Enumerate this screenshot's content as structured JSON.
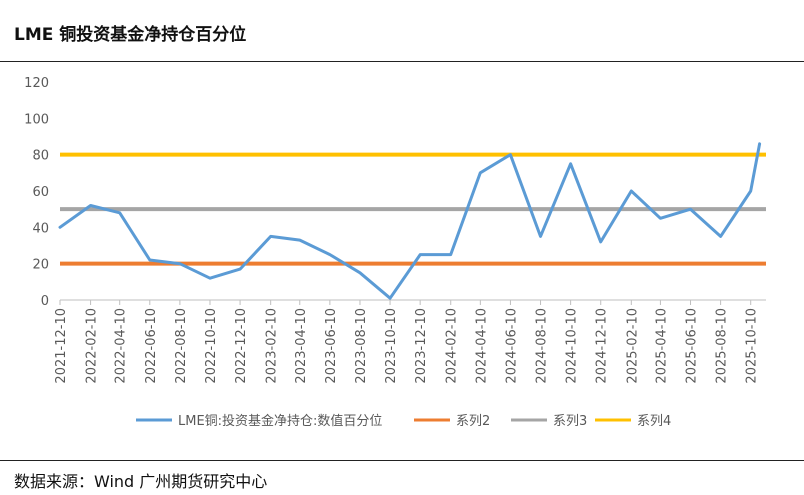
{
  "header": {
    "title": "LME 铜投资基金净持仓百分位"
  },
  "footer": {
    "source": "数据来源：Wind  广州期货研究中心"
  },
  "chart_data": {
    "type": "line",
    "title": "LME 铜投资基金净持仓百分位",
    "xlabel": "",
    "ylabel": "",
    "ylim": [
      0,
      120
    ],
    "yticks": [
      0,
      20,
      40,
      60,
      80,
      100,
      120
    ],
    "grid": false,
    "legend": "bottom",
    "x_ticks": [
      "2021-12-10",
      "2022-02-10",
      "2022-04-10",
      "2022-06-10",
      "2022-08-10",
      "2022-10-10",
      "2022-12-10",
      "2023-02-10",
      "2023-04-10",
      "2023-06-10",
      "2023-08-10",
      "2023-10-10",
      "2023-12-10",
      "2024-02-10",
      "2024-04-10",
      "2024-06-10",
      "2024-08-10",
      "2024-10-10",
      "2024-12-10",
      "2025-02-10",
      "2025-04-10",
      "2025-06-10",
      "2025-08-10",
      "2025-10-10"
    ],
    "series": [
      {
        "name": "LME铜:投资基金净持仓:数值百分位",
        "color": "#5B9BD5",
        "x": [
          "2021-12-10",
          "2022-02-10",
          "2022-04-10",
          "2022-06-10",
          "2022-08-10",
          "2022-10-10",
          "2022-12-10",
          "2023-02-10",
          "2023-04-10",
          "2023-06-10",
          "2023-08-10",
          "2023-10-10",
          "2023-12-10",
          "2024-02-10",
          "2024-04-10",
          "2024-06-10",
          "2024-08-10",
          "2024-10-10",
          "2024-12-10",
          "2025-02-10",
          "2025-04-10",
          "2025-06-10",
          "2025-08-10",
          "2025-10-10",
          "2025-10-28"
        ],
        "values": [
          40,
          52,
          48,
          22,
          20,
          12,
          17,
          35,
          33,
          25,
          15,
          1,
          25,
          25,
          70,
          80,
          35,
          75,
          32,
          60,
          45,
          50,
          35,
          60,
          86
        ]
      },
      {
        "name": "系列2",
        "color": "#ED7D31",
        "constant": 20
      },
      {
        "name": "系列3",
        "color": "#A5A5A5",
        "constant": 50
      },
      {
        "name": "系列4",
        "color": "#FFC000",
        "constant": 80
      }
    ]
  }
}
